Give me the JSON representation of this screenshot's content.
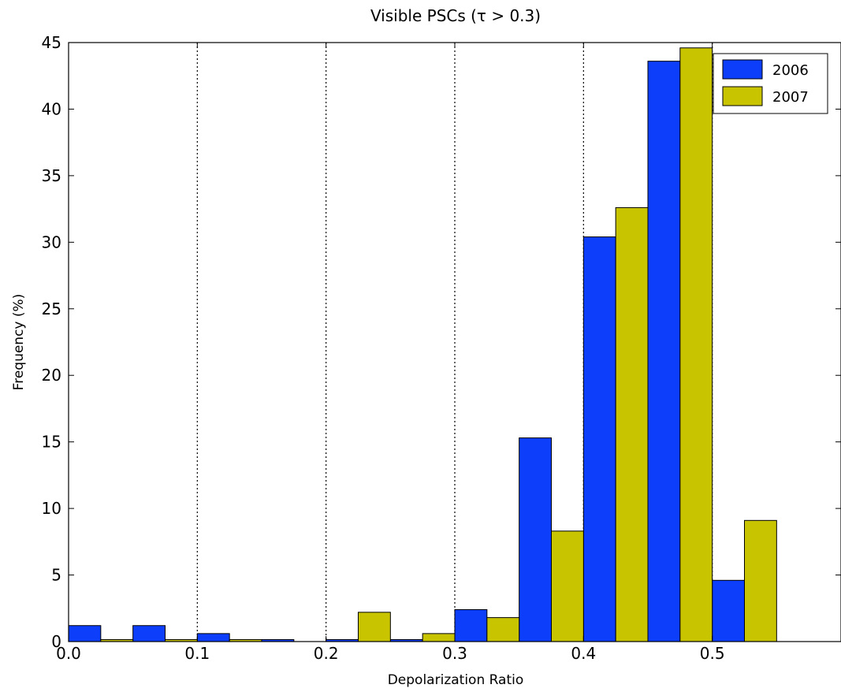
{
  "chart_data": {
    "type": "bar",
    "title": "Visible PSCs (τ > 0.3)",
    "xlabel": "Depolarization Ratio",
    "ylabel": "Frequency (%)",
    "xlim": [
      0.0,
      0.6
    ],
    "ylim": [
      0,
      45
    ],
    "x_ticks": [
      "0.0",
      "0.1",
      "0.2",
      "0.3",
      "0.4",
      "0.5"
    ],
    "y_ticks": [
      "0",
      "5",
      "10",
      "15",
      "20",
      "25",
      "30",
      "35",
      "40",
      "45"
    ],
    "bin_width": 0.05,
    "categories": [
      "0.00-0.05",
      "0.05-0.10",
      "0.10-0.15",
      "0.15-0.20",
      "0.20-0.25",
      "0.25-0.30",
      "0.30-0.35",
      "0.35-0.40",
      "0.40-0.45",
      "0.45-0.50",
      "0.50-0.55"
    ],
    "bin_starts": [
      0.0,
      0.05,
      0.1,
      0.15,
      0.2,
      0.25,
      0.3,
      0.35,
      0.4,
      0.45,
      0.5
    ],
    "series": [
      {
        "name": "2006",
        "color": "#0d3ffa",
        "values": [
          1.2,
          1.2,
          0.6,
          0.15,
          0.15,
          0.15,
          2.4,
          15.3,
          30.4,
          43.6,
          4.6
        ]
      },
      {
        "name": "2007",
        "color": "#c8c400",
        "values": [
          0.15,
          0.15,
          0.15,
          0.0,
          2.2,
          0.6,
          1.8,
          8.3,
          32.6,
          44.6,
          9.1
        ]
      }
    ],
    "grid": "vertical dotted at x ticks",
    "legend_position": "top-right"
  }
}
